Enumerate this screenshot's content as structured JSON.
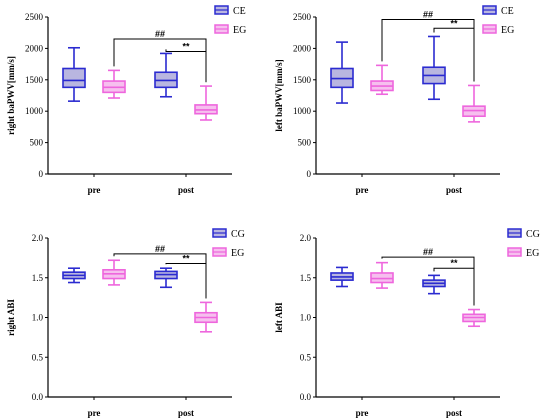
{
  "colors": {
    "blue": "#2b2bd0",
    "blue_fill": "#b9b6e0",
    "pink": "#ee66dd",
    "pink_fill": "#f6bfee"
  },
  "chart_data": [
    {
      "type": "box",
      "ylabel": "right baPWV[mm/s]",
      "ylim": [
        0,
        2500
      ],
      "yticks": [
        0,
        500,
        1000,
        1500,
        2000,
        2500
      ],
      "categories": [
        "pre",
        "post"
      ],
      "series": [
        {
          "name": "CE",
          "color": "blue",
          "boxes": [
            {
              "min": 1160,
              "q1": 1380,
              "median": 1490,
              "q3": 1680,
              "max": 2010
            },
            {
              "min": 1230,
              "q1": 1380,
              "median": 1490,
              "q3": 1620,
              "max": 1920
            }
          ]
        },
        {
          "name": "EG",
          "color": "pink",
          "boxes": [
            {
              "min": 1210,
              "q1": 1300,
              "median": 1380,
              "q3": 1480,
              "max": 1650
            },
            {
              "min": 860,
              "q1": 960,
              "median": 1020,
              "q3": 1100,
              "max": 1400
            }
          ]
        }
      ],
      "annotations": [
        {
          "text": "##",
          "from": [
            0,
            1
          ],
          "to": [
            1,
            1
          ],
          "y": 2150
        },
        {
          "text": "**",
          "from": [
            1,
            0
          ],
          "to": [
            1,
            1
          ],
          "y": 1950
        }
      ]
    },
    {
      "type": "box",
      "ylabel": "left baPWV[mm/s]",
      "ylim": [
        0,
        2500
      ],
      "yticks": [
        0,
        500,
        1000,
        1500,
        2000,
        2500
      ],
      "categories": [
        "pre",
        "post"
      ],
      "series": [
        {
          "name": "CE",
          "color": "blue",
          "boxes": [
            {
              "min": 1130,
              "q1": 1380,
              "median": 1520,
              "q3": 1680,
              "max": 2100
            },
            {
              "min": 1190,
              "q1": 1440,
              "median": 1570,
              "q3": 1700,
              "max": 2190
            }
          ]
        },
        {
          "name": "EG",
          "color": "pink",
          "boxes": [
            {
              "min": 1270,
              "q1": 1330,
              "median": 1400,
              "q3": 1480,
              "max": 1730
            },
            {
              "min": 830,
              "q1": 920,
              "median": 1010,
              "q3": 1080,
              "max": 1410
            }
          ]
        }
      ],
      "annotations": [
        {
          "text": "##",
          "from": [
            0,
            1
          ],
          "to": [
            1,
            1
          ],
          "y": 2460
        },
        {
          "text": "**",
          "from": [
            1,
            0
          ],
          "to": [
            1,
            1
          ],
          "y": 2320
        }
      ]
    },
    {
      "type": "box",
      "ylabel": "right ABI",
      "ylim": [
        0,
        2.0
      ],
      "yticks": [
        0.0,
        0.5,
        1.0,
        1.5,
        2.0
      ],
      "categories": [
        "pre",
        "post"
      ],
      "series": [
        {
          "name": "CG",
          "color": "blue",
          "boxes": [
            {
              "min": 1.44,
              "q1": 1.49,
              "median": 1.53,
              "q3": 1.57,
              "max": 1.62
            },
            {
              "min": 1.38,
              "q1": 1.49,
              "median": 1.54,
              "q3": 1.58,
              "max": 1.62
            }
          ]
        },
        {
          "name": "EG",
          "color": "pink",
          "boxes": [
            {
              "min": 1.41,
              "q1": 1.49,
              "median": 1.55,
              "q3": 1.6,
              "max": 1.72
            },
            {
              "min": 0.82,
              "q1": 0.94,
              "median": 1.0,
              "q3": 1.06,
              "max": 1.19
            }
          ]
        }
      ],
      "annotations": [
        {
          "text": "##",
          "from": [
            0,
            1
          ],
          "to": [
            1,
            1
          ],
          "y": 1.8
        },
        {
          "text": "**",
          "from": [
            1,
            0
          ],
          "to": [
            1,
            1
          ],
          "y": 1.68
        }
      ]
    },
    {
      "type": "box",
      "ylabel": "left ABI",
      "ylim": [
        0,
        2.0
      ],
      "yticks": [
        0.0,
        0.5,
        1.0,
        1.5,
        2.0
      ],
      "categories": [
        "pre",
        "post"
      ],
      "series": [
        {
          "name": "CG",
          "color": "blue",
          "boxes": [
            {
              "min": 1.39,
              "q1": 1.47,
              "median": 1.51,
              "q3": 1.56,
              "max": 1.63
            },
            {
              "min": 1.3,
              "q1": 1.39,
              "median": 1.43,
              "q3": 1.47,
              "max": 1.53
            }
          ]
        },
        {
          "name": "EG",
          "color": "pink",
          "boxes": [
            {
              "min": 1.37,
              "q1": 1.44,
              "median": 1.49,
              "q3": 1.56,
              "max": 1.69
            },
            {
              "min": 0.89,
              "q1": 0.95,
              "median": 1.0,
              "q3": 1.04,
              "max": 1.1
            }
          ]
        }
      ],
      "annotations": [
        {
          "text": "##",
          "from": [
            0,
            1
          ],
          "to": [
            1,
            1
          ],
          "y": 1.76
        },
        {
          "text": "**",
          "from": [
            1,
            0
          ],
          "to": [
            1,
            1
          ],
          "y": 1.62
        }
      ]
    }
  ]
}
